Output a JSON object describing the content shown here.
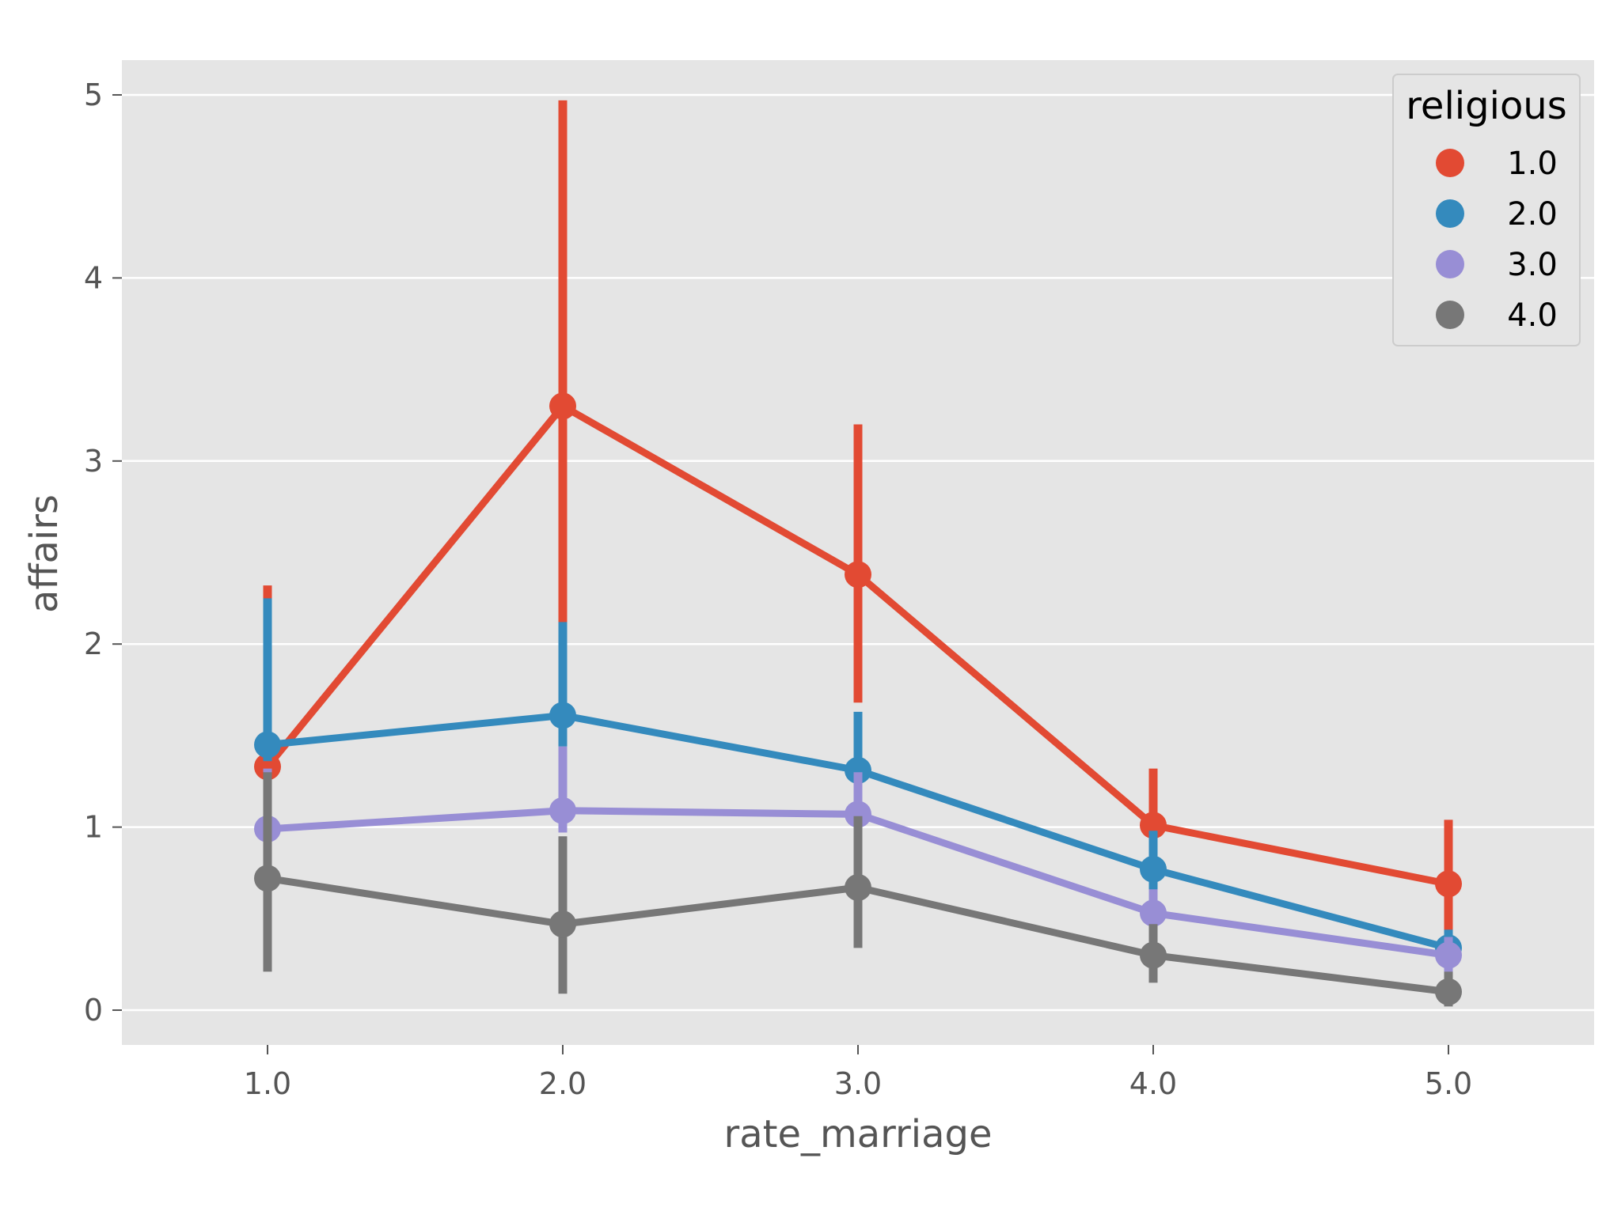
{
  "chart_data": {
    "type": "line",
    "xlabel": "rate_marriage",
    "ylabel": "affairs",
    "categories": [
      "1.0",
      "2.0",
      "3.0",
      "4.0",
      "5.0"
    ],
    "yticks": [
      "0",
      "1",
      "2",
      "3",
      "4",
      "5"
    ],
    "ylim": [
      -0.19,
      5.19
    ],
    "grid": true,
    "background": "#e5e5e5",
    "legend": {
      "title": "religious",
      "placement": "top-right"
    },
    "series": [
      {
        "name": "1.0",
        "color": "#e24a33",
        "values": [
          1.33,
          3.3,
          2.38,
          1.01,
          0.69
        ],
        "ci_low": [
          1.3,
          2.1,
          1.68,
          0.78,
          0.38
        ],
        "ci_high": [
          2.32,
          4.97,
          3.2,
          1.32,
          1.04
        ]
      },
      {
        "name": "2.0",
        "color": "#348abd",
        "values": [
          1.45,
          1.61,
          1.31,
          0.77,
          0.34
        ],
        "ci_low": [
          1.36,
          1.44,
          1.08,
          0.57,
          0.22
        ],
        "ci_high": [
          2.25,
          2.12,
          1.63,
          0.98,
          0.44
        ]
      },
      {
        "name": "3.0",
        "color": "#988ed5",
        "values": [
          0.99,
          1.09,
          1.07,
          0.53,
          0.3
        ],
        "ci_low": [
          0.94,
          0.97,
          0.92,
          0.41,
          0.18
        ],
        "ci_high": [
          1.32,
          1.44,
          1.3,
          0.66,
          0.4
        ]
      },
      {
        "name": "4.0",
        "color": "#777777",
        "values": [
          0.72,
          0.47,
          0.67,
          0.3,
          0.1
        ],
        "ci_low": [
          0.21,
          0.09,
          0.34,
          0.15,
          0.02
        ],
        "ci_high": [
          1.3,
          0.95,
          1.06,
          0.47,
          0.21
        ]
      }
    ]
  }
}
